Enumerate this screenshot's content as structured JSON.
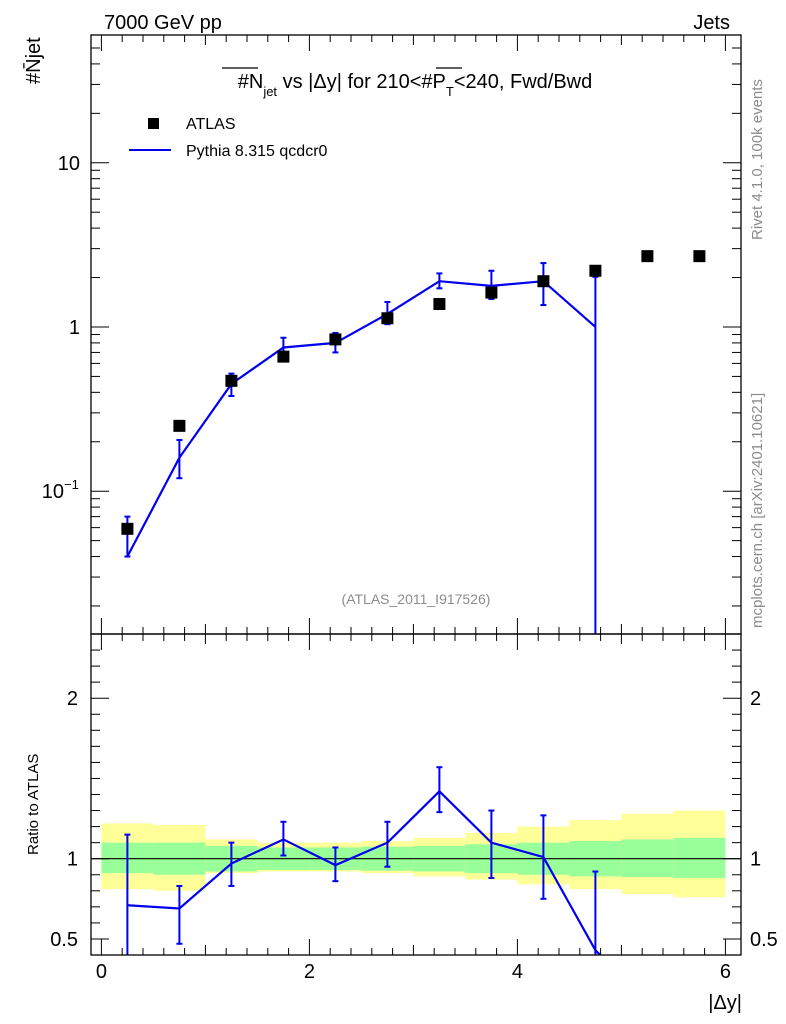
{
  "header": {
    "energy_label": "7000 GeV pp",
    "process_label": "Jets",
    "ylabel_main": "#N̄jet",
    "ylabel_ratio": "Ratio to ATLAS",
    "xlabel": "|Δy|",
    "side_rivet": "Rivet 4.1.0,  100k events",
    "side_mcplots": "mcplots.cern.ch [arXiv:2401.10621]",
    "analysis_id": "(ATLAS_2011_I917526)"
  },
  "title": {
    "t1": "#N",
    "t1_sub": "jet",
    "t2": " vs |Δy| for 210<#P",
    "t2_sub": "T",
    "t3": "<240, Fwd/Bwd"
  },
  "legend": {
    "data_label": "ATLAS",
    "mc_label": "Pythia 8.315 qcdcr0"
  },
  "colors": {
    "mc": "#0000ee",
    "band_inner": "#99ff99",
    "band_outer": "#ffff99",
    "data": "#000000"
  },
  "chart_data": [
    {
      "type": "scatter",
      "panel": "main",
      "yscale": "log",
      "xlim": [
        -0.1,
        6.15
      ],
      "ylim": [
        0.0135,
        60
      ],
      "x_ticks": [
        0,
        2,
        4,
        6
      ],
      "y_tick_labels": [
        "10^-1",
        "1",
        "10"
      ],
      "series": [
        {
          "name": "ATLAS",
          "x": [
            0.25,
            0.75,
            1.25,
            1.75,
            2.25,
            2.75,
            3.25,
            3.75,
            4.25,
            4.75,
            5.25,
            5.75
          ],
          "y": [
            0.059,
            0.25,
            0.47,
            0.66,
            0.84,
            1.13,
            1.38,
            1.62,
            1.9,
            2.2,
            2.7,
            2.7
          ]
        },
        {
          "name": "Pythia 8.315 qcdcr0",
          "x": [
            0.25,
            0.75,
            1.25,
            1.75,
            2.25,
            2.75,
            3.25,
            3.75,
            4.25,
            4.75
          ],
          "y": [
            0.04,
            0.16,
            0.45,
            0.75,
            0.8,
            1.2,
            1.9,
            1.78,
            1.9,
            1.0
          ],
          "yerr_low": [
            0.04,
            0.12,
            0.38,
            0.62,
            0.7,
            1.04,
            1.72,
            1.48,
            1.36,
            0.0
          ],
          "yerr_high": [
            0.07,
            0.205,
            0.52,
            0.86,
            0.92,
            1.42,
            2.12,
            2.2,
            2.45,
            2.02
          ]
        }
      ]
    },
    {
      "type": "line",
      "panel": "ratio",
      "xlim": [
        -0.1,
        6.15
      ],
      "ylim": [
        0.4,
        2.4
      ],
      "y_ticks": [
        0.5,
        1,
        2
      ],
      "y_tick_labels": [
        "0.5",
        "1",
        "2"
      ],
      "reference": 1,
      "bins": [
        0,
        0.5,
        1,
        1.5,
        2,
        2.5,
        3,
        3.5,
        4,
        4.5,
        5,
        5.5,
        6
      ],
      "band_inner_low": [
        0.91,
        0.9,
        0.92,
        0.93,
        0.93,
        0.925,
        0.92,
        0.91,
        0.9,
        0.89,
        0.885,
        0.88
      ],
      "band_inner_high": [
        1.1,
        1.1,
        1.08,
        1.07,
        1.07,
        1.075,
        1.08,
        1.09,
        1.1,
        1.11,
        1.12,
        1.13
      ],
      "band_outer_low": [
        0.81,
        0.8,
        0.91,
        0.92,
        0.92,
        0.91,
        0.89,
        0.87,
        0.84,
        0.81,
        0.78,
        0.76
      ],
      "band_outer_high": [
        1.22,
        1.21,
        1.12,
        1.1,
        1.1,
        1.11,
        1.13,
        1.16,
        1.2,
        1.24,
        1.28,
        1.3
      ],
      "series": [
        {
          "name": "Pythia 8.315 qcdcr0",
          "x": [
            0.25,
            0.75,
            1.25,
            1.75,
            2.25,
            2.75,
            3.25,
            3.75,
            4.25,
            4.75
          ],
          "y": [
            0.71,
            0.69,
            0.97,
            1.12,
            0.96,
            1.1,
            1.42,
            1.1,
            1.01,
            0.43
          ],
          "yerr_low": [
            0.38,
            0.47,
            0.83,
            1.02,
            0.86,
            0.95,
            1.29,
            0.88,
            0.75,
            0.38
          ],
          "yerr_high": [
            1.15,
            0.83,
            1.1,
            1.23,
            1.07,
            1.23,
            1.57,
            1.3,
            1.27,
            0.92
          ]
        }
      ]
    }
  ]
}
